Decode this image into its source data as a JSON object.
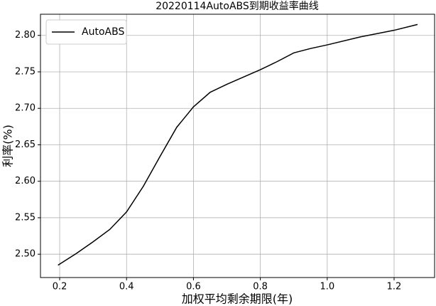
{
  "chart_data": {
    "type": "line",
    "title": "20220114AutoABS到期收益率曲线",
    "x_label": "加权平均剩余期限(年)",
    "y_label": "利率(%)",
    "x": [
      0.195,
      0.25,
      0.3,
      0.35,
      0.4,
      0.45,
      0.5,
      0.55,
      0.6,
      0.65,
      0.7,
      0.75,
      0.8,
      0.85,
      0.9,
      0.95,
      1.0,
      1.1,
      1.2,
      1.27
    ],
    "series": [
      {
        "name": "AutoABS",
        "color": "#000000",
        "values": [
          2.485,
          2.501,
          2.517,
          2.534,
          2.558,
          2.593,
          2.634,
          2.674,
          2.702,
          2.722,
          2.733,
          2.743,
          2.753,
          2.764,
          2.776,
          2.782,
          2.787,
          2.798,
          2.807,
          2.815
        ]
      }
    ],
    "xlim": [
      0.1426,
      1.321
    ],
    "ylim": [
      2.468,
      2.829
    ],
    "xticks": [
      0.2,
      0.4,
      0.6,
      0.8,
      {
        "value": 1.0,
        "label": "1.0"
      },
      1.2
    ],
    "yticks": [
      {
        "value": 2.5,
        "label": "2.50"
      },
      2.55,
      {
        "value": 2.6,
        "label": "2.60"
      },
      2.65,
      {
        "value": 2.7,
        "label": "2.70"
      },
      2.75,
      {
        "value": 2.8,
        "label": "2.80"
      }
    ],
    "grid": true,
    "legend": "upper-left"
  }
}
